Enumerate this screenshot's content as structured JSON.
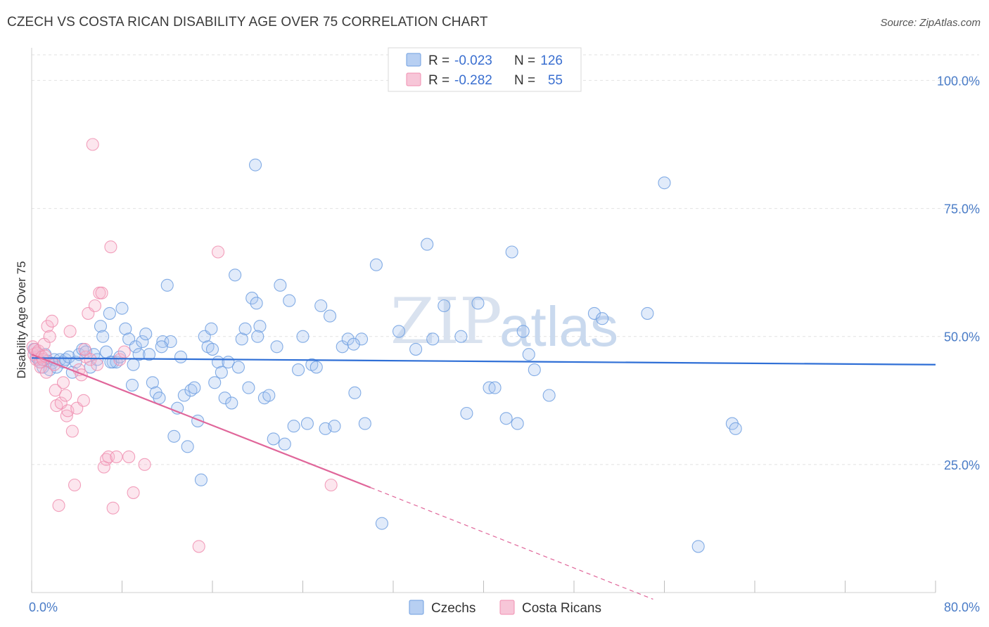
{
  "title": "CZECH VS COSTA RICAN DISABILITY AGE OVER 75 CORRELATION CHART",
  "source": "Source: ZipAtlas.com",
  "watermark": {
    "zip": "ZIP",
    "atlas": "atlas"
  },
  "colors": {
    "czech": "#6f9fe0",
    "costa": "#f08fb0",
    "czech_line": "#2f6fd6",
    "costa_line": "#e0669a",
    "tick": "#4a7cc7"
  },
  "legend": {
    "czech": {
      "r_label": "R =",
      "r_value": "-0.023",
      "n_label": "N =",
      "n_value": "126"
    },
    "costa": {
      "r_label": "R =",
      "r_value": "-0.282",
      "n_label": "N =",
      "n_value": "55"
    }
  },
  "chart_data": {
    "type": "scatter",
    "ylabel": "Disability Age Over 75",
    "xlim": [
      0,
      80
    ],
    "ylim": [
      0,
      105
    ],
    "x_tick_labels": [
      {
        "value": 0,
        "label": "0.0%"
      },
      {
        "value": 80,
        "label": "80.0%"
      }
    ],
    "y_tick_labels": [
      {
        "value": 25,
        "label": "25.0%"
      },
      {
        "value": 50,
        "label": "50.0%"
      },
      {
        "value": 75,
        "label": "75.0%"
      },
      {
        "value": 100,
        "label": "100.0%"
      }
    ],
    "series": [
      {
        "name": "Czechs",
        "trend": {
          "x0": 0,
          "y0": 45.8,
          "x1": 80,
          "y1": 44.5
        },
        "points": [
          [
            0.2,
            47.5
          ],
          [
            0.4,
            46.0
          ],
          [
            0.6,
            45.5
          ],
          [
            0.8,
            45.0
          ],
          [
            1.0,
            44.0
          ],
          [
            1.2,
            46.5
          ],
          [
            1.4,
            45.2
          ],
          [
            1.6,
            43.5
          ],
          [
            1.8,
            44.8
          ],
          [
            2.0,
            45.5
          ],
          [
            2.2,
            44.0
          ],
          [
            2.5,
            45.5
          ],
          [
            2.8,
            45.0
          ],
          [
            3.0,
            45.5
          ],
          [
            3.3,
            46.0
          ],
          [
            3.6,
            43.0
          ],
          [
            3.9,
            45.0
          ],
          [
            4.2,
            46.5
          ],
          [
            4.5,
            47.5
          ],
          [
            4.8,
            47.0
          ],
          [
            5.2,
            44.0
          ],
          [
            5.5,
            46.5
          ],
          [
            5.8,
            45.5
          ],
          [
            6.1,
            52.0
          ],
          [
            6.3,
            50.0
          ],
          [
            6.6,
            47.0
          ],
          [
            6.9,
            54.5
          ],
          [
            7.2,
            45.0
          ],
          [
            7.5,
            45.0
          ],
          [
            7.8,
            46.0
          ],
          [
            8.0,
            55.5
          ],
          [
            8.3,
            51.5
          ],
          [
            8.6,
            49.5
          ],
          [
            8.9,
            40.5
          ],
          [
            9.2,
            48.0
          ],
          [
            9.5,
            46.5
          ],
          [
            9.8,
            49.0
          ],
          [
            10.1,
            50.5
          ],
          [
            10.4,
            46.5
          ],
          [
            10.7,
            41.0
          ],
          [
            11.0,
            39.0
          ],
          [
            11.3,
            38.0
          ],
          [
            11.6,
            49.0
          ],
          [
            12.0,
            60.0
          ],
          [
            12.3,
            49.0
          ],
          [
            12.6,
            30.5
          ],
          [
            12.9,
            36.0
          ],
          [
            13.2,
            46.0
          ],
          [
            13.5,
            38.5
          ],
          [
            13.8,
            28.5
          ],
          [
            14.1,
            39.5
          ],
          [
            14.4,
            40.0
          ],
          [
            14.7,
            33.5
          ],
          [
            15.0,
            22.0
          ],
          [
            15.3,
            50.0
          ],
          [
            15.6,
            48.0
          ],
          [
            15.9,
            51.5
          ],
          [
            16.2,
            41.0
          ],
          [
            16.5,
            45.0
          ],
          [
            16.8,
            43.0
          ],
          [
            17.1,
            38.0
          ],
          [
            17.4,
            45.0
          ],
          [
            17.7,
            37.0
          ],
          [
            18.0,
            62.0
          ],
          [
            18.3,
            44.0
          ],
          [
            18.6,
            49.5
          ],
          [
            18.9,
            51.5
          ],
          [
            19.2,
            40.0
          ],
          [
            19.5,
            57.5
          ],
          [
            19.9,
            56.5
          ],
          [
            20.2,
            52.0
          ],
          [
            20.6,
            38.0
          ],
          [
            21.0,
            38.5
          ],
          [
            21.4,
            30.0
          ],
          [
            21.7,
            48.0
          ],
          [
            22.0,
            60.0
          ],
          [
            22.4,
            29.0
          ],
          [
            22.8,
            57.0
          ],
          [
            23.2,
            32.5
          ],
          [
            23.6,
            43.5
          ],
          [
            24.0,
            50.0
          ],
          [
            24.4,
            33.0
          ],
          [
            24.8,
            44.5
          ],
          [
            25.2,
            44.0
          ],
          [
            25.6,
            56.0
          ],
          [
            26.0,
            32.0
          ],
          [
            26.4,
            54.0
          ],
          [
            26.8,
            32.5
          ],
          [
            27.5,
            48.0
          ],
          [
            28.0,
            49.5
          ],
          [
            28.6,
            39.0
          ],
          [
            29.2,
            49.5
          ],
          [
            29.5,
            33.0
          ],
          [
            19.8,
            83.5
          ],
          [
            30.5,
            64.0
          ],
          [
            31.0,
            13.5
          ],
          [
            32.5,
            51.0
          ],
          [
            34.0,
            47.5
          ],
          [
            35.0,
            68.0
          ],
          [
            35.5,
            49.5
          ],
          [
            36.5,
            56.0
          ],
          [
            38.0,
            50.0
          ],
          [
            38.5,
            35.0
          ],
          [
            39.5,
            56.5
          ],
          [
            40.5,
            40.0
          ],
          [
            41.0,
            40.0
          ],
          [
            42.0,
            34.0
          ],
          [
            42.5,
            66.5
          ],
          [
            43.0,
            33.0
          ],
          [
            43.5,
            51.0
          ],
          [
            44.0,
            46.5
          ],
          [
            44.5,
            43.5
          ],
          [
            45.8,
            38.5
          ],
          [
            49.8,
            54.5
          ],
          [
            50.5,
            53.5
          ],
          [
            54.5,
            54.5
          ],
          [
            56.0,
            80.0
          ],
          [
            59.0,
            9.0
          ],
          [
            62.0,
            33.0
          ],
          [
            62.3,
            32.0
          ],
          [
            28.5,
            48.5
          ],
          [
            11.5,
            48.0
          ],
          [
            20.0,
            50.0
          ],
          [
            16.0,
            47.5
          ],
          [
            9.0,
            44.5
          ],
          [
            7.0,
            45.0
          ]
        ]
      },
      {
        "name": "Costa Ricans",
        "trend": {
          "x0": 0,
          "y0": 46.5,
          "x1": 30,
          "y1": 20.5,
          "dash_x1": 55,
          "dash_y1": -1.3
        },
        "points": [
          [
            0.1,
            48.0
          ],
          [
            0.2,
            46.5
          ],
          [
            0.3,
            47.5
          ],
          [
            0.4,
            45.5
          ],
          [
            0.5,
            46.8
          ],
          [
            0.6,
            47.2
          ],
          [
            0.7,
            45.0
          ],
          [
            0.8,
            44.0
          ],
          [
            0.9,
            46.0
          ],
          [
            1.0,
            45.5
          ],
          [
            1.1,
            48.5
          ],
          [
            1.2,
            46.2
          ],
          [
            1.3,
            43.0
          ],
          [
            1.4,
            52.0
          ],
          [
            1.6,
            50.0
          ],
          [
            1.8,
            53.0
          ],
          [
            2.0,
            44.5
          ],
          [
            2.1,
            39.5
          ],
          [
            2.2,
            36.5
          ],
          [
            2.4,
            17.0
          ],
          [
            2.6,
            37.0
          ],
          [
            2.8,
            41.0
          ],
          [
            3.0,
            38.5
          ],
          [
            3.1,
            34.5
          ],
          [
            3.2,
            35.5
          ],
          [
            3.4,
            51.0
          ],
          [
            3.6,
            31.5
          ],
          [
            3.8,
            21.0
          ],
          [
            4.0,
            36.0
          ],
          [
            4.2,
            43.5
          ],
          [
            4.4,
            42.5
          ],
          [
            4.6,
            37.5
          ],
          [
            4.8,
            46.0
          ],
          [
            5.0,
            54.5
          ],
          [
            5.2,
            45.5
          ],
          [
            5.4,
            87.5
          ],
          [
            5.6,
            56.0
          ],
          [
            5.8,
            44.5
          ],
          [
            6.0,
            58.5
          ],
          [
            6.2,
            58.5
          ],
          [
            6.4,
            24.5
          ],
          [
            6.6,
            26.0
          ],
          [
            6.8,
            26.5
          ],
          [
            7.0,
            67.5
          ],
          [
            7.2,
            16.5
          ],
          [
            7.5,
            26.5
          ],
          [
            7.8,
            45.5
          ],
          [
            8.2,
            47.0
          ],
          [
            8.6,
            26.5
          ],
          [
            9.0,
            19.5
          ],
          [
            10.0,
            25.0
          ],
          [
            14.8,
            9.0
          ],
          [
            16.5,
            66.5
          ],
          [
            26.5,
            21.0
          ],
          [
            4.7,
            47.5
          ]
        ]
      }
    ]
  },
  "bottom_legend": {
    "czech": "Czechs",
    "costa": "Costa Ricans"
  }
}
